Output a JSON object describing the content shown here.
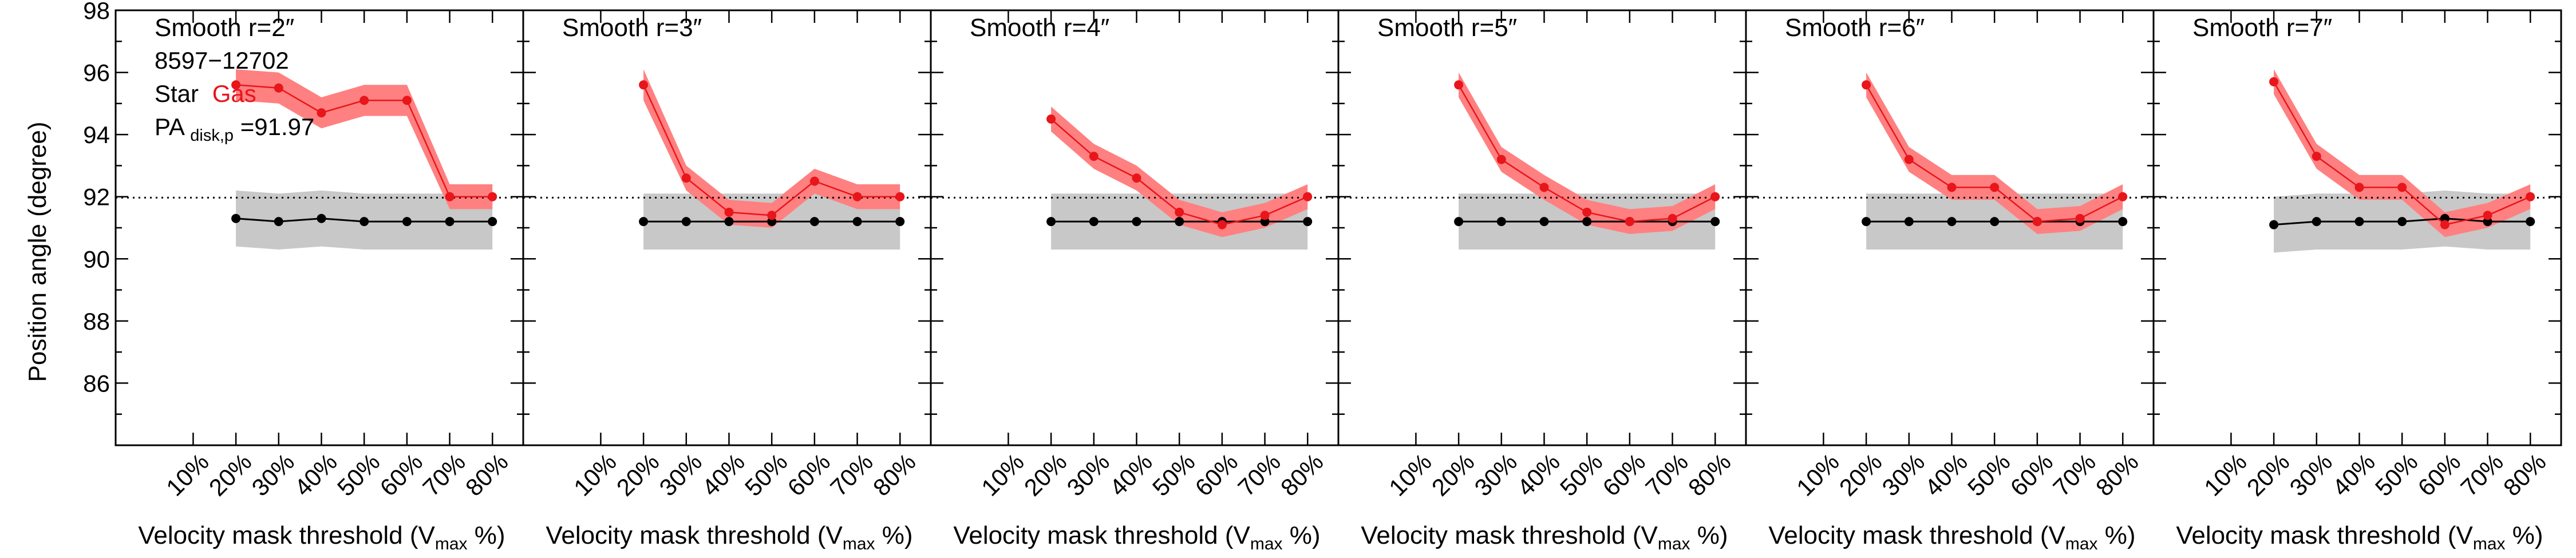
{
  "figure": {
    "ylabel": "Position angle (degree)",
    "xlabel_prefix": "Velocity mask threshold (V",
    "xlabel_sub": "max",
    "xlabel_suffix": " %)"
  },
  "annotation": {
    "id": "8597−12702",
    "star_label": "Star",
    "gas_label": "Gas",
    "pa_prefix": "PA",
    "pa_sub": "disk,p",
    "pa_value": "=91.97"
  },
  "colors": {
    "gas": "#e8151b",
    "gas_band": "#ff8080",
    "star": "#000000",
    "star_band": "#c8c8c8",
    "reference_line": "#000000"
  },
  "chart_data": [
    {
      "type": "line",
      "title": "Smooth r=2″",
      "xlabel": "Velocity mask threshold (Vmax %)",
      "ylabel": "Position angle (degree)",
      "x_categories": [
        "10%",
        "20%",
        "30%",
        "40%",
        "50%",
        "60%",
        "70%",
        "80%"
      ],
      "ylim": [
        84,
        98
      ],
      "yticks": [
        86,
        88,
        90,
        92,
        94,
        96,
        98
      ],
      "reference_line": 91.97,
      "series": [
        {
          "name": "Star",
          "x": [
            "20%",
            "30%",
            "40%",
            "50%",
            "60%",
            "70%",
            "80%"
          ],
          "values": [
            91.3,
            91.2,
            91.3,
            91.2,
            91.2,
            91.2,
            91.2
          ],
          "band": [
            0.9,
            0.9,
            0.9,
            0.9,
            0.9,
            0.9,
            0.9
          ]
        },
        {
          "name": "Gas",
          "x": [
            "20%",
            "30%",
            "40%",
            "50%",
            "60%",
            "70%",
            "80%"
          ],
          "values": [
            95.6,
            95.5,
            94.7,
            95.1,
            95.1,
            92.0,
            92.0
          ],
          "band": [
            0.5,
            0.5,
            0.5,
            0.5,
            0.5,
            0.4,
            0.4
          ]
        }
      ]
    },
    {
      "type": "line",
      "title": "Smooth r=3″",
      "xlabel": "Velocity mask threshold (Vmax %)",
      "x_categories": [
        "10%",
        "20%",
        "30%",
        "40%",
        "50%",
        "60%",
        "70%",
        "80%"
      ],
      "ylim": [
        84,
        98
      ],
      "reference_line": 91.97,
      "series": [
        {
          "name": "Star",
          "x": [
            "20%",
            "30%",
            "40%",
            "50%",
            "60%",
            "70%",
            "80%"
          ],
          "values": [
            91.2,
            91.2,
            91.2,
            91.2,
            91.2,
            91.2,
            91.2
          ],
          "band": [
            0.9,
            0.9,
            0.9,
            0.9,
            0.9,
            0.9,
            0.9
          ]
        },
        {
          "name": "Gas",
          "x": [
            "20%",
            "30%",
            "40%",
            "50%",
            "60%",
            "70%",
            "80%"
          ],
          "values": [
            95.6,
            92.6,
            91.5,
            91.4,
            92.5,
            92.0,
            92.0
          ],
          "band": [
            0.5,
            0.4,
            0.4,
            0.4,
            0.4,
            0.4,
            0.4
          ]
        }
      ]
    },
    {
      "type": "line",
      "title": "Smooth r=4″",
      "xlabel": "Velocity mask threshold (Vmax %)",
      "x_categories": [
        "10%",
        "20%",
        "30%",
        "40%",
        "50%",
        "60%",
        "70%",
        "80%"
      ],
      "ylim": [
        84,
        98
      ],
      "reference_line": 91.97,
      "series": [
        {
          "name": "Star",
          "x": [
            "20%",
            "30%",
            "40%",
            "50%",
            "60%",
            "70%",
            "80%"
          ],
          "values": [
            91.2,
            91.2,
            91.2,
            91.2,
            91.2,
            91.2,
            91.2
          ],
          "band": [
            0.9,
            0.9,
            0.9,
            0.9,
            0.9,
            0.9,
            0.9
          ]
        },
        {
          "name": "Gas",
          "x": [
            "20%",
            "30%",
            "40%",
            "50%",
            "60%",
            "70%",
            "80%"
          ],
          "values": [
            94.5,
            93.3,
            92.6,
            91.5,
            91.1,
            91.4,
            92.0
          ],
          "band": [
            0.4,
            0.4,
            0.4,
            0.4,
            0.4,
            0.4,
            0.4
          ]
        }
      ]
    },
    {
      "type": "line",
      "title": "Smooth r=5″",
      "xlabel": "Velocity mask threshold (Vmax %)",
      "x_categories": [
        "10%",
        "20%",
        "30%",
        "40%",
        "50%",
        "60%",
        "70%",
        "80%"
      ],
      "ylim": [
        84,
        98
      ],
      "reference_line": 91.97,
      "series": [
        {
          "name": "Star",
          "x": [
            "20%",
            "30%",
            "40%",
            "50%",
            "60%",
            "70%",
            "80%"
          ],
          "values": [
            91.2,
            91.2,
            91.2,
            91.2,
            91.2,
            91.2,
            91.2
          ],
          "band": [
            0.9,
            0.9,
            0.9,
            0.9,
            0.9,
            0.9,
            0.9
          ]
        },
        {
          "name": "Gas",
          "x": [
            "20%",
            "30%",
            "40%",
            "50%",
            "60%",
            "70%",
            "80%"
          ],
          "values": [
            95.6,
            93.2,
            92.3,
            91.5,
            91.2,
            91.3,
            92.0
          ],
          "band": [
            0.4,
            0.4,
            0.4,
            0.4,
            0.4,
            0.4,
            0.4
          ]
        }
      ]
    },
    {
      "type": "line",
      "title": "Smooth r=6″",
      "xlabel": "Velocity mask threshold (Vmax %)",
      "x_categories": [
        "10%",
        "20%",
        "30%",
        "40%",
        "50%",
        "60%",
        "70%",
        "80%"
      ],
      "ylim": [
        84,
        98
      ],
      "reference_line": 91.97,
      "series": [
        {
          "name": "Star",
          "x": [
            "20%",
            "30%",
            "40%",
            "50%",
            "60%",
            "70%",
            "80%"
          ],
          "values": [
            91.2,
            91.2,
            91.2,
            91.2,
            91.2,
            91.2,
            91.2
          ],
          "band": [
            0.9,
            0.9,
            0.9,
            0.9,
            0.9,
            0.9,
            0.9
          ]
        },
        {
          "name": "Gas",
          "x": [
            "20%",
            "30%",
            "40%",
            "50%",
            "60%",
            "70%",
            "80%"
          ],
          "values": [
            95.6,
            93.2,
            92.3,
            92.3,
            91.2,
            91.3,
            92.0
          ],
          "band": [
            0.4,
            0.4,
            0.4,
            0.4,
            0.4,
            0.4,
            0.4
          ]
        }
      ]
    },
    {
      "type": "line",
      "title": "Smooth r=7″",
      "xlabel": "Velocity mask threshold (Vmax %)",
      "x_categories": [
        "10%",
        "20%",
        "30%",
        "40%",
        "50%",
        "60%",
        "70%",
        "80%"
      ],
      "ylim": [
        84,
        98
      ],
      "reference_line": 91.97,
      "series": [
        {
          "name": "Star",
          "x": [
            "20%",
            "30%",
            "40%",
            "50%",
            "60%",
            "70%",
            "80%"
          ],
          "values": [
            91.1,
            91.2,
            91.2,
            91.2,
            91.3,
            91.2,
            91.2
          ],
          "band": [
            0.9,
            0.9,
            0.9,
            0.9,
            0.9,
            0.9,
            0.9
          ]
        },
        {
          "name": "Gas",
          "x": [
            "20%",
            "30%",
            "40%",
            "50%",
            "60%",
            "70%",
            "80%"
          ],
          "values": [
            95.7,
            93.3,
            92.3,
            92.3,
            91.1,
            91.4,
            92.0
          ],
          "band": [
            0.4,
            0.4,
            0.4,
            0.4,
            0.4,
            0.4,
            0.4
          ]
        }
      ]
    }
  ]
}
